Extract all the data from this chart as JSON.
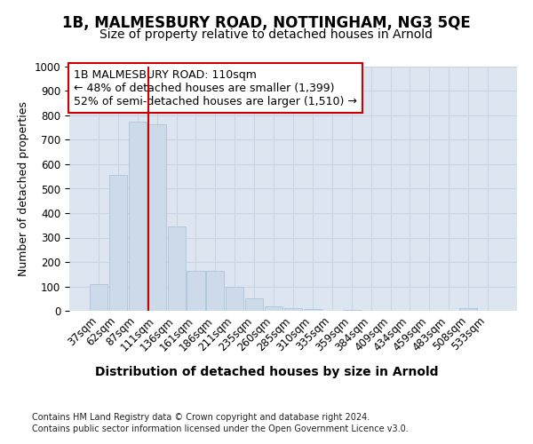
{
  "title_line1": "1B, MALMESBURY ROAD, NOTTINGHAM, NG3 5QE",
  "title_line2": "Size of property relative to detached houses in Arnold",
  "xlabel": "Distribution of detached houses by size in Arnold",
  "ylabel": "Number of detached properties",
  "categories": [
    "37sqm",
    "62sqm",
    "87sqm",
    "111sqm",
    "136sqm",
    "161sqm",
    "186sqm",
    "211sqm",
    "235sqm",
    "260sqm",
    "285sqm",
    "310sqm",
    "335sqm",
    "359sqm",
    "384sqm",
    "409sqm",
    "434sqm",
    "459sqm",
    "483sqm",
    "508sqm",
    "533sqm"
  ],
  "values": [
    110,
    555,
    775,
    765,
    345,
    165,
    165,
    97,
    52,
    18,
    12,
    8,
    0,
    4,
    0,
    0,
    0,
    0,
    0,
    12,
    0
  ],
  "bar_color": "#ccdaea",
  "bar_edge_color": "#aec4d8",
  "vline_x_index": 3,
  "vline_color": "#cc0000",
  "annotation_title": "1B MALMESBURY ROAD: 110sqm",
  "annotation_line2": "← 48% of detached houses are smaller (1,399)",
  "annotation_line3": "52% of semi-detached houses are larger (1,510) →",
  "annotation_box_color": "#cc0000",
  "ylim": [
    0,
    1000
  ],
  "yticks": [
    0,
    100,
    200,
    300,
    400,
    500,
    600,
    700,
    800,
    900,
    1000
  ],
  "grid_color": "#c8d4e4",
  "bg_color": "#dde6f0",
  "footer_line1": "Contains HM Land Registry data © Crown copyright and database right 2024.",
  "footer_line2": "Contains public sector information licensed under the Open Government Licence v3.0.",
  "title_fontsize": 12,
  "subtitle_fontsize": 10,
  "xlabel_fontsize": 10,
  "ylabel_fontsize": 9,
  "annot_fontsize": 9
}
